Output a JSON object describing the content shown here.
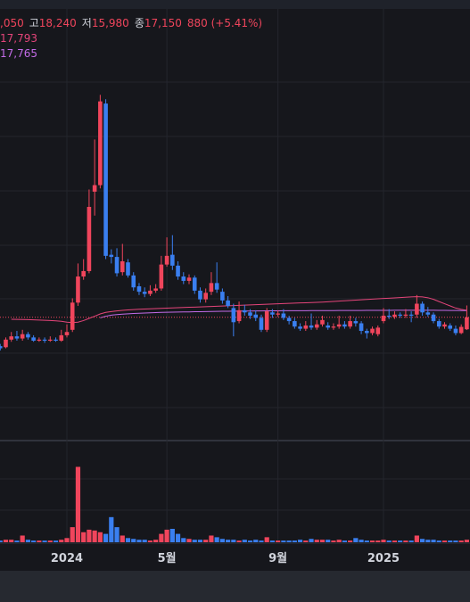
{
  "chart_data": {
    "type": "candlestick",
    "header": {
      "open": ",050",
      "high_label": "고",
      "high": "18,240",
      "low_label": "저",
      "low": "15,980",
      "close_label": "종",
      "close": "17,150",
      "change": "880 (+5.41%)"
    },
    "categories": [
      null,
      null,
      null,
      null,
      null,
      null,
      null,
      null,
      null,
      null,
      null,
      null,
      "2024",
      null,
      null,
      null,
      null,
      null,
      null,
      null,
      null,
      null,
      null,
      null,
      null,
      null,
      null,
      null,
      null,
      null,
      "5월",
      null,
      null,
      null,
      null,
      null,
      null,
      null,
      null,
      null,
      null,
      null,
      null,
      null,
      null,
      null,
      null,
      null,
      null,
      null,
      "9월",
      null,
      null,
      null,
      null,
      null,
      null,
      null,
      null,
      null,
      null,
      null,
      null,
      null,
      null,
      null,
      null,
      null,
      null,
      "2025",
      null,
      null,
      null,
      null,
      null,
      null,
      null,
      null,
      null,
      null,
      null,
      null,
      null,
      null,
      null
    ],
    "open": [
      14500,
      14400,
      15100,
      15400,
      15200,
      15600,
      15300,
      15000,
      15100,
      15000,
      15100,
      15000,
      15500,
      16000,
      18500,
      20900,
      21400,
      28700,
      29300,
      36800,
      22900,
      22700,
      21300,
      22200,
      21000,
      20000,
      19500,
      19300,
      19600,
      19800,
      22000,
      22900,
      21900,
      20900,
      20500,
      20800,
      19600,
      18800,
      19500,
      20300,
      19500,
      18700,
      18000,
      16800,
      17800,
      17600,
      17400,
      17100,
      16000,
      17600,
      17400,
      17500,
      17100,
      16800,
      16300,
      16100,
      16400,
      16200,
      16500,
      16400,
      16200,
      16300,
      16500,
      16300,
      16800,
      16600,
      15900,
      15700,
      15600,
      16800,
      17300,
      17200,
      17400,
      17300,
      17400,
      17400,
      18400,
      17600,
      17400,
      16800,
      16300,
      16400,
      16100,
      15700,
      16050
    ],
    "high": [
      14700,
      15300,
      15800,
      15900,
      16000,
      15800,
      15500,
      15300,
      15300,
      15400,
      15300,
      16000,
      16500,
      18900,
      22100,
      22500,
      28900,
      33500,
      37600,
      37200,
      23400,
      23500,
      23900,
      22500,
      21300,
      20300,
      19900,
      20100,
      20200,
      22800,
      24500,
      24700,
      22300,
      21300,
      21100,
      21000,
      19900,
      19800,
      21300,
      22200,
      19800,
      19100,
      18400,
      18600,
      18300,
      17900,
      17800,
      17400,
      18000,
      17900,
      17800,
      17900,
      17300,
      17100,
      16600,
      16800,
      17500,
      16900,
      17300,
      16700,
      16600,
      17300,
      16800,
      17300,
      17100,
      16800,
      16100,
      16300,
      16400,
      18000,
      17900,
      17700,
      17600,
      17900,
      17700,
      19200,
      18600,
      18100,
      17600,
      17000,
      16700,
      16600,
      16400,
      16500,
      18240
    ],
    "low": [
      14100,
      14300,
      14900,
      15000,
      15000,
      15100,
      14900,
      14900,
      14800,
      14900,
      14900,
      14900,
      15300,
      15800,
      18200,
      20600,
      21200,
      26500,
      29000,
      22500,
      22100,
      20900,
      21000,
      20800,
      19600,
      19200,
      19000,
      19100,
      19400,
      19600,
      21800,
      21500,
      20600,
      20200,
      20200,
      19300,
      18500,
      18500,
      19200,
      19400,
      18400,
      18000,
      15400,
      16600,
      17300,
      17000,
      16800,
      15800,
      15800,
      17100,
      17200,
      16900,
      16500,
      16100,
      15900,
      15900,
      16000,
      16000,
      16300,
      16000,
      16000,
      16100,
      16100,
      16100,
      16300,
      15600,
      15200,
      15500,
      15400,
      16600,
      17000,
      17000,
      17100,
      17100,
      16700,
      17100,
      17300,
      17200,
      16600,
      16100,
      16100,
      15900,
      15500,
      15600,
      15980
    ],
    "close": [
      14300,
      15100,
      15400,
      15200,
      15600,
      15300,
      15000,
      15100,
      15000,
      15100,
      15000,
      15500,
      15800,
      18500,
      20900,
      21400,
      27300,
      29300,
      37000,
      22800,
      22700,
      21200,
      22300,
      21000,
      19900,
      19500,
      19300,
      19600,
      19800,
      22000,
      22800,
      21900,
      20900,
      20500,
      20800,
      19600,
      18800,
      19400,
      20300,
      19700,
      18700,
      18200,
      16700,
      17800,
      17600,
      17300,
      17100,
      16000,
      17700,
      17400,
      17500,
      17100,
      16800,
      16300,
      16100,
      16400,
      16200,
      16500,
      16900,
      16200,
      16300,
      16500,
      16300,
      16800,
      16600,
      15900,
      15700,
      16100,
      16200,
      17300,
      17200,
      17400,
      17300,
      17400,
      17300,
      18400,
      17600,
      17400,
      16800,
      16300,
      16500,
      16100,
      15700,
      16270,
      17150
    ],
    "volume": [
      2,
      3,
      3,
      2,
      8,
      3,
      2,
      2,
      2,
      2,
      2,
      3,
      5,
      18,
      90,
      12,
      15,
      14,
      12,
      10,
      30,
      18,
      8,
      5,
      4,
      3,
      3,
      2,
      3,
      10,
      15,
      16,
      10,
      5,
      4,
      3,
      3,
      3,
      8,
      6,
      4,
      3,
      3,
      2,
      3,
      2,
      3,
      2,
      6,
      2,
      2,
      2,
      2,
      2,
      3,
      2,
      4,
      3,
      3,
      3,
      2,
      3,
      2,
      2,
      5,
      3,
      2,
      2,
      2,
      3,
      2,
      2,
      2,
      2,
      2,
      8,
      4,
      3,
      3,
      2,
      2,
      2,
      2,
      2,
      3
    ],
    "ylim": [
      5900,
      45500
    ],
    "vlim": [
      0,
      115
    ],
    "up_color": "#f0455c",
    "down_color": "#3a7ff0",
    "series": [
      {
        "color": "#e5457a",
        "last_label": "17,793",
        "values": [
          null,
          null,
          16970,
          16960,
          16950,
          16940,
          16920,
          16900,
          16880,
          16860,
          16820,
          16780,
          16700,
          16660,
          16700,
          16850,
          17050,
          17250,
          17460,
          17600,
          17680,
          17740,
          17790,
          17830,
          17860,
          17890,
          17910,
          17930,
          17950,
          17970,
          17990,
          18010,
          18030,
          18050,
          18070,
          18090,
          18110,
          18130,
          18150,
          18170,
          18190,
          18210,
          18230,
          18250,
          18270,
          18290,
          18310,
          18330,
          18350,
          18370,
          18390,
          18410,
          18430,
          18450,
          18470,
          18490,
          18510,
          18530,
          18550,
          18580,
          18610,
          18640,
          18670,
          18700,
          18730,
          18760,
          18790,
          18820,
          18850,
          18880,
          18910,
          18940,
          18970,
          19000,
          19030,
          19050,
          19030,
          18950,
          18800,
          18600,
          18400,
          18200,
          18000,
          17880,
          17793
        ]
      },
      {
        "color": "#c36be8",
        "last_label": "17,765",
        "values": [
          null,
          null,
          null,
          null,
          null,
          null,
          null,
          null,
          null,
          null,
          null,
          null,
          null,
          null,
          null,
          null,
          null,
          null,
          17100,
          17250,
          17350,
          17400,
          17440,
          17470,
          17500,
          17520,
          17540,
          17560,
          17580,
          17600,
          17610,
          17620,
          17630,
          17640,
          17650,
          17660,
          17670,
          17680,
          17690,
          17700,
          17705,
          17710,
          17715,
          17720,
          17725,
          17730,
          17735,
          17740,
          17745,
          17750,
          17752,
          17754,
          17756,
          17758,
          17760,
          17762,
          17764,
          17766,
          17768,
          17770,
          17772,
          17774,
          17776,
          17778,
          17780,
          17782,
          17784,
          17786,
          17788,
          17790,
          17792,
          17794,
          17796,
          17798,
          17800,
          17802,
          17800,
          17798,
          17795,
          17790,
          17785,
          17780,
          17775,
          17770,
          17765
        ]
      }
    ]
  }
}
